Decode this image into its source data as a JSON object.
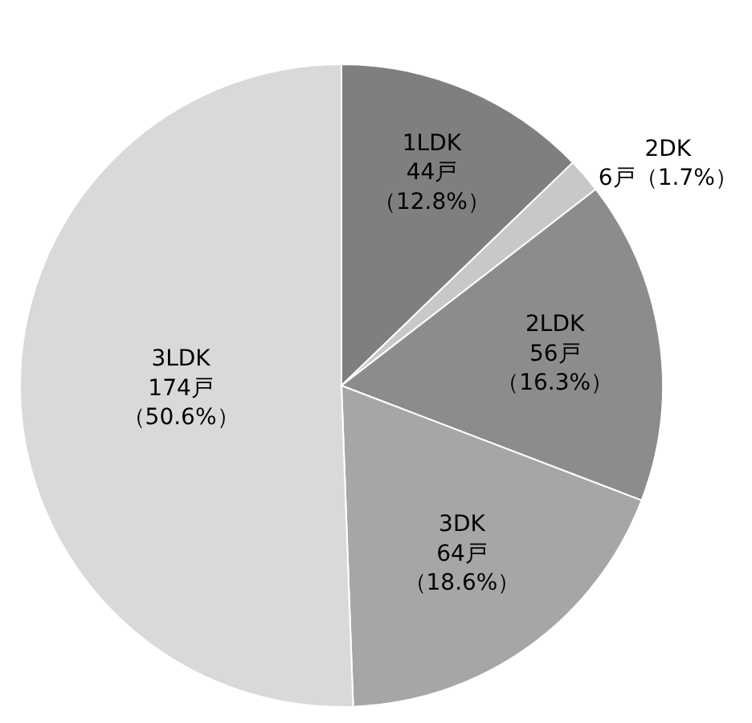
{
  "chart_data": {
    "type": "pie",
    "categories": [
      "1LDK",
      "2DK",
      "2LDK",
      "3DK",
      "3LDK"
    ],
    "values": [
      44,
      6,
      56,
      64,
      174
    ],
    "value_labels": [
      "44戸（12.8%）",
      "6戸（1.7%）",
      "56戸（16.3%）",
      "64戸（18.6%）",
      "174戸（50.6%）"
    ],
    "colors": [
      "#7f7f7f",
      "#c8c8c8",
      "#8c8c8c",
      "#a6a6a6",
      "#d9d9d9"
    ],
    "legend": false
  }
}
